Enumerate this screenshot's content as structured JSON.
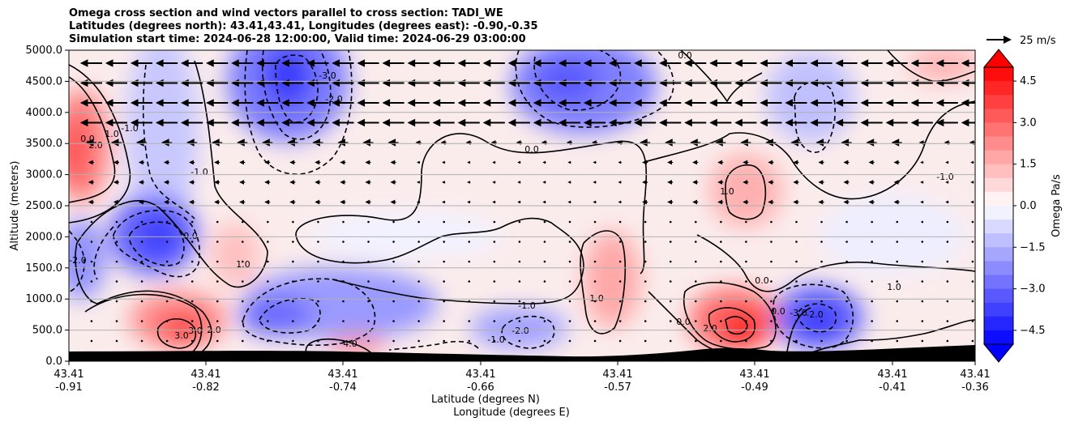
{
  "title_lines": [
    "Omega cross section and wind vectors parallel to cross section: TADI_WE",
    "Latitudes (degrees north): 43.41,43.41, Longitudes (degrees east): -0.90,-0.35",
    "Simulation start time: 2024-06-28 12:00:00, Valid time: 2024-06-29 03:00:00"
  ],
  "chart_data": {
    "type": "heatmap",
    "ylabel": "Altitude (meters)",
    "xlabel_lines": [
      "Latitude (degrees N)",
      "Longitude (degrees E)"
    ],
    "ylim": [
      0,
      5000
    ],
    "y_ticks": [
      "0.0",
      "500.0",
      "1000.0",
      "1500.0",
      "2000.0",
      "2500.0",
      "3000.0",
      "3500.0",
      "4000.0",
      "4500.0",
      "5000.0"
    ],
    "x_ticks": [
      {
        "lat": "43.41",
        "lon": "-0.91"
      },
      {
        "lat": "43.41",
        "lon": "-0.82"
      },
      {
        "lat": "43.41",
        "lon": "-0.74"
      },
      {
        "lat": "43.41",
        "lon": "-0.66"
      },
      {
        "lat": "43.41",
        "lon": "-0.57"
      },
      {
        "lat": "43.41",
        "lon": "-0.49"
      },
      {
        "lat": "43.41",
        "lon": "-0.41"
      },
      {
        "lat": "43.41",
        "lon": "-0.36"
      }
    ],
    "horizontal_grid": true,
    "colorbar": {
      "label": "Omega Pa/s",
      "range": [
        -5.0,
        5.0
      ],
      "tick_labels": [
        "4.5",
        "3.0",
        "1.5",
        "0.0",
        "−1.5",
        "−3.0",
        "−4.5"
      ],
      "colormap": "bwr",
      "extend": "both"
    },
    "vector_key": {
      "label": "25 m/s"
    },
    "contour_labels": [
      "-2.0",
      "-1.0",
      "0.0",
      "1.0",
      "2.0",
      "3.0",
      "-3.0",
      "4.0",
      "1.0",
      "0.0",
      "-1.0",
      "-2.0",
      "2.0",
      "3.0",
      "0.0",
      "1.0",
      "-1.0",
      "-2.0",
      "0.0",
      "1.0",
      "-1.0",
      "2.0",
      "0.0",
      "-2.0",
      "-3.0",
      "0.0",
      "-1.0",
      "1.0",
      "0.0"
    ],
    "features": [
      {
        "name": "negative-omega-cell",
        "x_lon": -0.79,
        "y": 4500,
        "value": -3.0
      },
      {
        "name": "negative-omega-cell",
        "x_lon": -0.86,
        "y": 2050,
        "value": -3.0
      },
      {
        "name": "negative-omega-cell",
        "x_lon": -0.78,
        "y": 650,
        "value": -2.5
      },
      {
        "name": "negative-omega-cell",
        "x_lon": -0.62,
        "y": 4400,
        "value": -2.5
      },
      {
        "name": "negative-omega-cell",
        "x_lon": -0.45,
        "y": 700,
        "value": -3.0
      },
      {
        "name": "positive-omega-cell",
        "x_lon": -0.91,
        "y": 3300,
        "value": 2.5
      },
      {
        "name": "positive-omega-cell",
        "x_lon": -0.83,
        "y": 500,
        "value": 3.0
      },
      {
        "name": "positive-omega-cell",
        "x_lon": -0.49,
        "y": 550,
        "value": 4.5
      },
      {
        "name": "positive-omega-cell",
        "x_lon": -0.5,
        "y": 2800,
        "value": 1.5
      },
      {
        "name": "positive-omega-cell",
        "x_lon": -0.57,
        "y": 1100,
        "value": 1.0
      }
    ],
    "wind": {
      "upper_levels": "strong easterly (leftward) flow above ~3500 m",
      "lower_levels": "weak flow"
    }
  }
}
